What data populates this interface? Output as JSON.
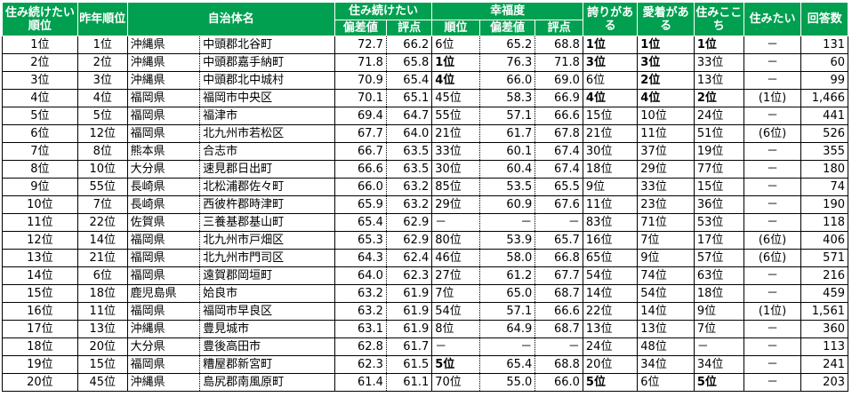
{
  "headers": {
    "rank": "住み続けたい順位",
    "prev_rank": "昨年順位",
    "municipality": "自治体名",
    "continue": "住み続けたい",
    "happiness": "幸福度",
    "pride": "誇りがある",
    "attachment": "愛着がある",
    "comfort": "住みここち",
    "want_live": "住みたい",
    "responses": "回答数",
    "dev": "偏差値",
    "score": "評点",
    "rank_sub": "順位"
  },
  "rows": [
    {
      "rank": "1位",
      "prev": "1位",
      "pref": "沖縄県",
      "city": "中頭郡北谷町",
      "cdev": "72.7",
      "cscore": "66.2",
      "hrank": "6位",
      "hdev": "65.2",
      "hscore": "68.8",
      "pride": "1位",
      "attach": "1位",
      "comfort": "1位",
      "want": "－",
      "n": "131",
      "b_h": false,
      "b_p": true,
      "b_a": true,
      "b_c": true
    },
    {
      "rank": "2位",
      "prev": "2位",
      "pref": "沖縄県",
      "city": "中頭郡嘉手納町",
      "cdev": "71.8",
      "cscore": "65.8",
      "hrank": "1位",
      "hdev": "76.3",
      "hscore": "71.8",
      "pride": "3位",
      "attach": "3位",
      "comfort": "33位",
      "want": "－",
      "n": "60",
      "b_h": true,
      "b_p": true,
      "b_a": true,
      "b_c": false
    },
    {
      "rank": "3位",
      "prev": "3位",
      "pref": "沖縄県",
      "city": "中頭郡北中城村",
      "cdev": "70.9",
      "cscore": "65.4",
      "hrank": "4位",
      "hdev": "66.0",
      "hscore": "69.0",
      "pride": "6位",
      "attach": "2位",
      "comfort": "13位",
      "want": "－",
      "n": "99",
      "b_h": true,
      "b_p": false,
      "b_a": true,
      "b_c": false
    },
    {
      "rank": "4位",
      "prev": "4位",
      "pref": "福岡県",
      "city": "福岡市中央区",
      "cdev": "70.1",
      "cscore": "65.1",
      "hrank": "45位",
      "hdev": "58.3",
      "hscore": "66.9",
      "pride": "4位",
      "attach": "4位",
      "comfort": "2位",
      "want": "(1位)",
      "n": "1,466",
      "b_h": false,
      "b_p": true,
      "b_a": true,
      "b_c": true
    },
    {
      "rank": "5位",
      "prev": "5位",
      "pref": "福岡県",
      "city": "福津市",
      "cdev": "69.4",
      "cscore": "64.7",
      "hrank": "55位",
      "hdev": "57.1",
      "hscore": "66.6",
      "pride": "15位",
      "attach": "10位",
      "comfort": "24位",
      "want": "－",
      "n": "441",
      "b_h": false,
      "b_p": false,
      "b_a": false,
      "b_c": false
    },
    {
      "rank": "6位",
      "prev": "12位",
      "pref": "福岡県",
      "city": "北九州市若松区",
      "cdev": "67.7",
      "cscore": "64.0",
      "hrank": "21位",
      "hdev": "61.7",
      "hscore": "67.8",
      "pride": "21位",
      "attach": "11位",
      "comfort": "51位",
      "want": "(6位)",
      "n": "526",
      "b_h": false,
      "b_p": false,
      "b_a": false,
      "b_c": false
    },
    {
      "rank": "7位",
      "prev": "8位",
      "pref": "熊本県",
      "city": "合志市",
      "cdev": "66.7",
      "cscore": "63.5",
      "hrank": "33位",
      "hdev": "60.1",
      "hscore": "67.4",
      "pride": "30位",
      "attach": "37位",
      "comfort": "19位",
      "want": "－",
      "n": "355",
      "b_h": false,
      "b_p": false,
      "b_a": false,
      "b_c": false
    },
    {
      "rank": "8位",
      "prev": "10位",
      "pref": "大分県",
      "city": "速見郡日出町",
      "cdev": "66.6",
      "cscore": "63.5",
      "hrank": "30位",
      "hdev": "60.4",
      "hscore": "67.4",
      "pride": "18位",
      "attach": "29位",
      "comfort": "77位",
      "want": "－",
      "n": "180",
      "b_h": false,
      "b_p": false,
      "b_a": false,
      "b_c": false
    },
    {
      "rank": "9位",
      "prev": "55位",
      "pref": "長崎県",
      "city": "北松浦郡佐々町",
      "cdev": "66.0",
      "cscore": "63.2",
      "hrank": "85位",
      "hdev": "53.5",
      "hscore": "65.5",
      "pride": "9位",
      "attach": "33位",
      "comfort": "15位",
      "want": "－",
      "n": "74",
      "b_h": false,
      "b_p": false,
      "b_a": false,
      "b_c": false
    },
    {
      "rank": "10位",
      "prev": "7位",
      "pref": "長崎県",
      "city": "西彼杵郡時津町",
      "cdev": "65.9",
      "cscore": "63.2",
      "hrank": "29位",
      "hdev": "60.9",
      "hscore": "67.6",
      "pride": "11位",
      "attach": "23位",
      "comfort": "36位",
      "want": "－",
      "n": "190",
      "b_h": false,
      "b_p": false,
      "b_a": false,
      "b_c": false
    },
    {
      "rank": "11位",
      "prev": "22位",
      "pref": "佐賀県",
      "city": "三養基郡基山町",
      "cdev": "65.4",
      "cscore": "62.9",
      "hrank": "－",
      "hdev": "－",
      "hscore": "－",
      "pride": "83位",
      "attach": "71位",
      "comfort": "53位",
      "want": "－",
      "n": "118",
      "b_h": false,
      "b_p": false,
      "b_a": false,
      "b_c": false
    },
    {
      "rank": "12位",
      "prev": "14位",
      "pref": "福岡県",
      "city": "北九州市戸畑区",
      "cdev": "65.3",
      "cscore": "62.9",
      "hrank": "80位",
      "hdev": "53.9",
      "hscore": "65.7",
      "pride": "16位",
      "attach": "7位",
      "comfort": "17位",
      "want": "(6位)",
      "n": "406",
      "b_h": false,
      "b_p": false,
      "b_a": false,
      "b_c": false
    },
    {
      "rank": "13位",
      "prev": "21位",
      "pref": "福岡県",
      "city": "北九州市門司区",
      "cdev": "64.3",
      "cscore": "62.4",
      "hrank": "46位",
      "hdev": "58.0",
      "hscore": "66.8",
      "pride": "65位",
      "attach": "9位",
      "comfort": "57位",
      "want": "(6位)",
      "n": "571",
      "b_h": false,
      "b_p": false,
      "b_a": false,
      "b_c": false
    },
    {
      "rank": "14位",
      "prev": "6位",
      "pref": "福岡県",
      "city": "遠賀郡岡垣町",
      "cdev": "64.0",
      "cscore": "62.3",
      "hrank": "27位",
      "hdev": "61.2",
      "hscore": "67.7",
      "pride": "54位",
      "attach": "74位",
      "comfort": "63位",
      "want": "－",
      "n": "216",
      "b_h": false,
      "b_p": false,
      "b_a": false,
      "b_c": false
    },
    {
      "rank": "15位",
      "prev": "18位",
      "pref": "鹿児島県",
      "city": "姶良市",
      "cdev": "63.2",
      "cscore": "61.9",
      "hrank": "7位",
      "hdev": "65.0",
      "hscore": "68.7",
      "pride": "14位",
      "attach": "54位",
      "comfort": "18位",
      "want": "－",
      "n": "459",
      "b_h": false,
      "b_p": false,
      "b_a": false,
      "b_c": false
    },
    {
      "rank": "16位",
      "prev": "11位",
      "pref": "福岡県",
      "city": "福岡市早良区",
      "cdev": "63.2",
      "cscore": "61.9",
      "hrank": "54位",
      "hdev": "57.1",
      "hscore": "66.6",
      "pride": "22位",
      "attach": "14位",
      "comfort": "9位",
      "want": "(1位)",
      "n": "1,561",
      "b_h": false,
      "b_p": false,
      "b_a": false,
      "b_c": false
    },
    {
      "rank": "17位",
      "prev": "13位",
      "pref": "沖縄県",
      "city": "豊見城市",
      "cdev": "63.1",
      "cscore": "61.9",
      "hrank": "8位",
      "hdev": "64.9",
      "hscore": "68.7",
      "pride": "13位",
      "attach": "13位",
      "comfort": "7位",
      "want": "－",
      "n": "360",
      "b_h": false,
      "b_p": false,
      "b_a": false,
      "b_c": false
    },
    {
      "rank": "18位",
      "prev": "20位",
      "pref": "大分県",
      "city": "豊後高田市",
      "cdev": "62.8",
      "cscore": "61.7",
      "hrank": "－",
      "hdev": "－",
      "hscore": "－",
      "pride": "24位",
      "attach": "48位",
      "comfort": "－",
      "want": "－",
      "n": "113",
      "b_h": false,
      "b_p": false,
      "b_a": false,
      "b_c": false
    },
    {
      "rank": "19位",
      "prev": "15位",
      "pref": "福岡県",
      "city": "糟屋郡新宮町",
      "cdev": "62.3",
      "cscore": "61.5",
      "hrank": "5位",
      "hdev": "65.4",
      "hscore": "68.8",
      "pride": "20位",
      "attach": "34位",
      "comfort": "34位",
      "want": "－",
      "n": "241",
      "b_h": true,
      "b_p": false,
      "b_a": false,
      "b_c": false
    },
    {
      "rank": "20位",
      "prev": "45位",
      "pref": "沖縄県",
      "city": "島尻郡南風原町",
      "cdev": "61.4",
      "cscore": "61.1",
      "hrank": "70位",
      "hdev": "55.0",
      "hscore": "66.0",
      "pride": "5位",
      "attach": "6位",
      "comfort": "5位",
      "want": "－",
      "n": "203",
      "b_h": false,
      "b_p": true,
      "b_a": false,
      "b_c": true
    }
  ]
}
